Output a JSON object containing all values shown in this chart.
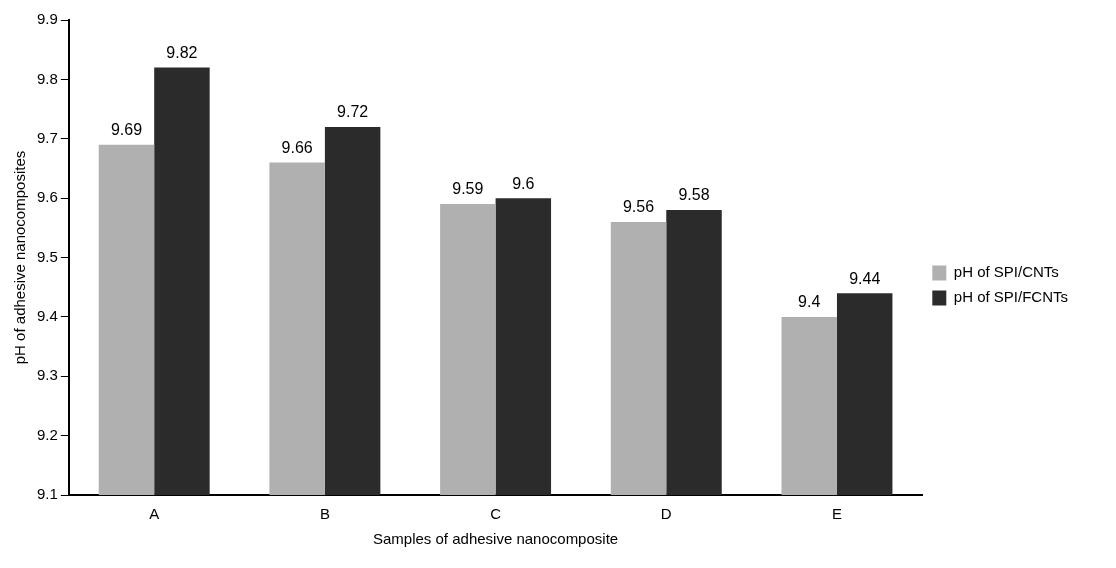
{
  "chart_data": {
    "type": "bar",
    "xlabel": "Samples of adhesive nanocomposite",
    "ylabel": "pH of adhesive nanocomposites",
    "categories": [
      "A",
      "B",
      "C",
      "D",
      "E"
    ],
    "series": [
      {
        "name": "pH of SPI/CNTs",
        "color": "#b0b0b0",
        "values": [
          9.69,
          9.66,
          9.59,
          9.56,
          9.4
        ]
      },
      {
        "name": "pH of SPI/FCNTs",
        "color": "#2b2b2b",
        "values": [
          9.82,
          9.72,
          9.6,
          9.58,
          9.44
        ]
      }
    ],
    "ylim": [
      9.1,
      9.9
    ],
    "yticks": [
      9.1,
      9.2,
      9.3,
      9.4,
      9.5,
      9.6,
      9.7,
      9.8,
      9.9
    ],
    "grid": false,
    "legend": "right",
    "data_labels": true
  }
}
